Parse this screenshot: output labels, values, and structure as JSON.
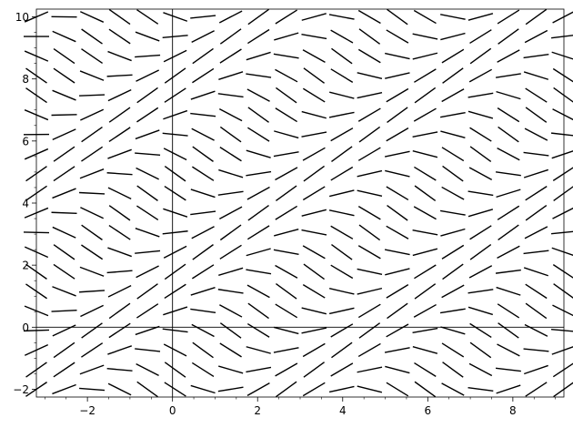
{
  "chart_data": {
    "type": "slope-field",
    "title": "",
    "xlabel": "",
    "ylabel": "",
    "xlim": [
      -3.2,
      9.2
    ],
    "ylim": [
      -2.25,
      10.25
    ],
    "x_ticks": [
      -2,
      0,
      2,
      4,
      6,
      8
    ],
    "y_ticks": [
      -2,
      0,
      2,
      4,
      6,
      8,
      10
    ],
    "x_tick_labels": [
      "−2",
      "0",
      "2",
      "4",
      "6",
      "8"
    ],
    "y_tick_labels": [
      "−2",
      "0",
      "2",
      "4",
      "6",
      "8",
      "10"
    ],
    "field": {
      "x_start": -3.2,
      "x_end": 9.2,
      "nx": 20,
      "y_start": -2.0,
      "y_end": 10.0,
      "ny": 20,
      "slope_expression": "sin(y - x)",
      "segment_length": 0.5,
      "color": "#000000"
    },
    "grid": false,
    "legend": "none"
  }
}
